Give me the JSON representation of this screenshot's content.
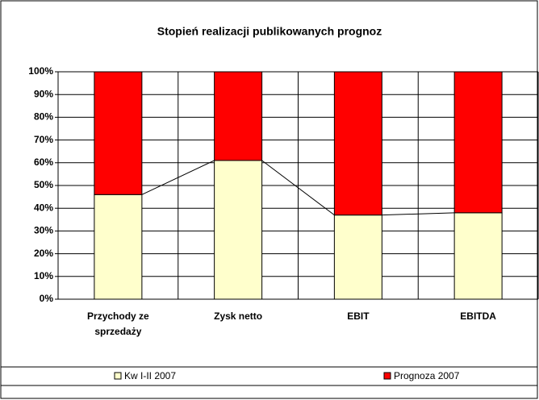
{
  "chart_data": {
    "type": "stacked_bar_100",
    "title": "Stopień realizacji publikowanych prognoz",
    "categories": [
      "Przychody ze sprzedaży",
      "Zysk netto",
      "EBIT",
      "EBITDA"
    ],
    "series": [
      {
        "name": "Kw I-II 2007",
        "color": "#FFFFCC",
        "values": [
          46,
          61,
          37,
          38
        ]
      },
      {
        "name": "Prognoza 2007",
        "color": "#FF0000",
        "values": [
          54,
          39,
          63,
          62
        ]
      }
    ],
    "ylim": [
      0,
      100
    ],
    "yticks": [
      {
        "value": 0,
        "label": "0%"
      },
      {
        "value": 10,
        "label": "10%"
      },
      {
        "value": 20,
        "label": "20%"
      },
      {
        "value": 30,
        "label": "30%"
      },
      {
        "value": 40,
        "label": "40%"
      },
      {
        "value": 50,
        "label": "50%"
      },
      {
        "value": 60,
        "label": "60%"
      },
      {
        "value": 70,
        "label": "70%"
      },
      {
        "value": 80,
        "label": "80%"
      },
      {
        "value": 90,
        "label": "90%"
      },
      {
        "value": 100,
        "label": "100%"
      }
    ],
    "grid": true,
    "legend": "bottom"
  }
}
